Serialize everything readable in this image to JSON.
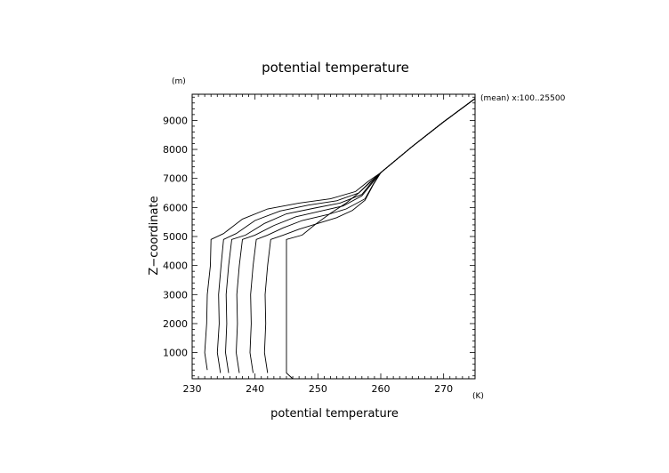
{
  "chart_data": {
    "type": "line",
    "title": "potential temperature",
    "xlabel": "potential temperature",
    "ylabel": "Z−coordinate",
    "xunit": "(K)",
    "yunit": "(m)",
    "annotation": "(mean) x:100..25500",
    "xlim": [
      230,
      275
    ],
    "ylim": [
      100,
      9900
    ],
    "xticks": [
      230,
      240,
      250,
      260,
      270
    ],
    "yticks": [
      1000,
      2000,
      3000,
      4000,
      5000,
      6000,
      7000,
      8000,
      9000
    ],
    "grid": false,
    "series": [
      {
        "x": [
          232.4,
          232.0,
          232.3,
          232.4,
          232.9,
          233.0,
          235.0,
          238.0,
          242.0,
          247.0,
          252.0,
          256.0,
          258.0,
          260.0,
          265.0,
          270.0,
          275.0
        ],
        "y": [
          400,
          1000,
          2000,
          3000,
          4000,
          4900,
          5100,
          5600,
          5950,
          6150,
          6300,
          6550,
          6900,
          7200,
          8100,
          8950,
          9750
        ]
      },
      {
        "x": [
          234.5,
          234.0,
          234.3,
          234.2,
          234.6,
          235.0,
          237.0,
          240.0,
          244.0,
          248.5,
          253.0,
          256.5,
          258.3,
          260.0,
          265.0,
          270.0,
          275.0
        ],
        "y": [
          300,
          1000,
          2000,
          3000,
          4000,
          4900,
          5100,
          5550,
          5880,
          6080,
          6230,
          6500,
          6880,
          7200,
          8100,
          8950,
          9750
        ]
      },
      {
        "x": [
          235.8,
          235.3,
          235.5,
          235.4,
          235.8,
          236.3,
          238.5,
          241.5,
          245.0,
          249.5,
          253.5,
          257.0,
          258.5,
          260.0,
          265.0,
          270.0,
          275.0
        ],
        "y": [
          300,
          1000,
          2000,
          3000,
          4000,
          4900,
          5050,
          5450,
          5780,
          5980,
          6150,
          6450,
          6850,
          7200,
          8100,
          8950,
          9750
        ]
      },
      {
        "x": [
          237.5,
          237.0,
          237.2,
          237.1,
          237.5,
          238.0,
          240.0,
          243.0,
          246.5,
          250.5,
          254.0,
          257.0,
          258.6,
          260.0,
          265.0,
          270.0,
          275.0
        ],
        "y": [
          300,
          1000,
          2000,
          3000,
          4000,
          4900,
          5050,
          5380,
          5680,
          5880,
          6050,
          6400,
          6830,
          7200,
          8100,
          8950,
          9750
        ]
      },
      {
        "x": [
          239.7,
          239.2,
          239.4,
          239.3,
          239.7,
          240.2,
          242.0,
          244.5,
          247.5,
          251.5,
          254.5,
          257.5,
          258.8,
          260.0,
          265.0,
          270.0,
          275.0
        ],
        "y": [
          300,
          1000,
          2000,
          3000,
          4000,
          4900,
          5050,
          5300,
          5550,
          5750,
          5950,
          6300,
          6800,
          7200,
          8100,
          8950,
          9750
        ]
      },
      {
        "x": [
          242.0,
          241.5,
          241.7,
          241.6,
          242.0,
          242.5,
          244.5,
          247.0,
          250.0,
          253.0,
          255.5,
          257.5,
          258.8,
          260.0,
          265.0,
          270.0,
          275.0
        ],
        "y": [
          300,
          1000,
          2000,
          3000,
          4000,
          4900,
          5050,
          5250,
          5450,
          5650,
          5900,
          6250,
          6780,
          7200,
          8100,
          8950,
          9750
        ]
      },
      {
        "x": [
          246.0,
          245.0,
          245.0,
          245.0,
          245.0,
          245.0,
          247.5,
          249.5,
          252.0,
          254.5,
          256.5,
          258.0,
          259.0,
          260.0,
          265.0,
          270.0,
          275.0
        ],
        "y": [
          100,
          300,
          1000,
          2000,
          3000,
          4900,
          5050,
          5400,
          5800,
          6150,
          6500,
          6800,
          7000,
          7200,
          8100,
          8950,
          9750
        ]
      }
    ]
  }
}
